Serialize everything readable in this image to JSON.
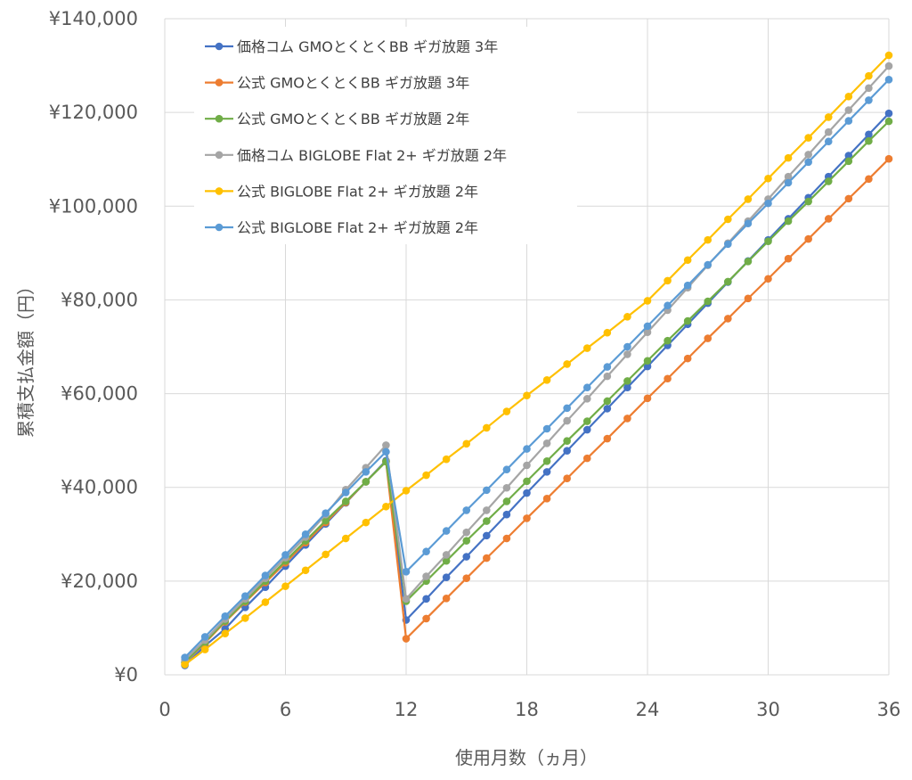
{
  "chart_data": {
    "type": "line",
    "title": "",
    "xlabel": "使用月数（ヵ月）",
    "ylabel": "累積支払金額（円）",
    "xlim": [
      0,
      36
    ],
    "ylim": [
      0,
      140000
    ],
    "x_ticks": [
      0,
      6,
      12,
      18,
      24,
      30,
      36
    ],
    "y_ticks": [
      0,
      20000,
      40000,
      60000,
      80000,
      100000,
      120000,
      140000
    ],
    "y_tick_labels": [
      "¥0",
      "¥20,000",
      "¥40,000",
      "¥60,000",
      "¥80,000",
      "¥100,000",
      "¥120,000",
      "¥140,000"
    ],
    "grid": true,
    "legend_position": "top-left",
    "x": [
      1,
      2,
      3,
      4,
      5,
      6,
      7,
      8,
      9,
      10,
      11,
      12,
      13,
      14,
      15,
      16,
      17,
      18,
      19,
      20,
      21,
      22,
      23,
      24,
      25,
      26,
      27,
      28,
      29,
      30,
      31,
      32,
      33,
      34,
      35,
      36
    ],
    "series": [
      {
        "name": "価格コム GMOとくとくBB ギガ放題 3年",
        "color": "#4472C4",
        "values": [
          2000,
          6200,
          9800,
          14400,
          18700,
          23200,
          27700,
          32200,
          36700,
          41200,
          45700,
          11700,
          16200,
          20800,
          25200,
          29700,
          34200,
          38800,
          43300,
          47800,
          52300,
          56800,
          61300,
          65800,
          70300,
          74800,
          79300,
          83800,
          88300,
          92800,
          97300,
          101800,
          106300,
          110800,
          115300,
          119800
        ]
      },
      {
        "name": "公式 GMOとくとくBB ギガ放題 3年",
        "color": "#ED7D31",
        "values": [
          2600,
          6800,
          11300,
          15500,
          19700,
          23900,
          28200,
          32500,
          36800,
          41200,
          45500,
          7700,
          12000,
          16300,
          20600,
          24900,
          29100,
          33400,
          37600,
          41900,
          46200,
          50400,
          54700,
          59000,
          63200,
          67500,
          71800,
          76000,
          80300,
          84500,
          88800,
          93000,
          97300,
          101600,
          105800,
          110100
        ]
      },
      {
        "name": "公式 GMOとくとくBB ギガ放題 2年",
        "color": "#70AD47",
        "values": [
          2700,
          7000,
          11500,
          15700,
          20000,
          24300,
          28600,
          32900,
          37000,
          41200,
          45500,
          15700,
          20000,
          24300,
          28600,
          32800,
          37000,
          41300,
          45600,
          49900,
          54100,
          58400,
          62700,
          67000,
          71300,
          75500,
          79700,
          83900,
          88200,
          92500,
          96800,
          101000,
          105300,
          109600,
          113900,
          118100
        ]
      },
      {
        "name": "価格コム BIGLOBE Flat 2+ ギガ放題 2年",
        "color": "#A5A5A5",
        "values": [
          3200,
          7400,
          11900,
          16200,
          20600,
          25000,
          29400,
          34200,
          39500,
          44200,
          49000,
          16200,
          21000,
          25600,
          30400,
          35100,
          39900,
          44700,
          49400,
          54200,
          58900,
          63700,
          68400,
          73100,
          77800,
          82600,
          87400,
          92100,
          96800,
          101500,
          106300,
          111000,
          115800,
          120500,
          125200,
          129900
        ]
      },
      {
        "name": "公式 BIGLOBE Flat 2+ ギガ放題 2年",
        "color": "#FFC000",
        "values": [
          2200,
          5400,
          8800,
          12100,
          15500,
          18900,
          22300,
          25700,
          29100,
          32500,
          35900,
          39300,
          42600,
          46000,
          49300,
          52700,
          56200,
          59600,
          62900,
          66300,
          69700,
          73000,
          76400,
          79800,
          84100,
          88500,
          92800,
          97200,
          101500,
          105900,
          110300,
          114600,
          119000,
          123400,
          127800,
          132200
        ]
      },
      {
        "name": "公式 BIGLOBE Flat 2+ ギガ放題 2年",
        "color": "#5B9BD5",
        "values": [
          3700,
          8100,
          12500,
          16800,
          21200,
          25600,
          30000,
          34500,
          38900,
          43300,
          47600,
          22000,
          26300,
          30700,
          35100,
          39400,
          43800,
          48200,
          52500,
          56900,
          61300,
          65700,
          70000,
          74400,
          78800,
          83100,
          87500,
          91900,
          96300,
          100600,
          105000,
          109400,
          113800,
          118200,
          122600,
          127000
        ]
      }
    ]
  }
}
